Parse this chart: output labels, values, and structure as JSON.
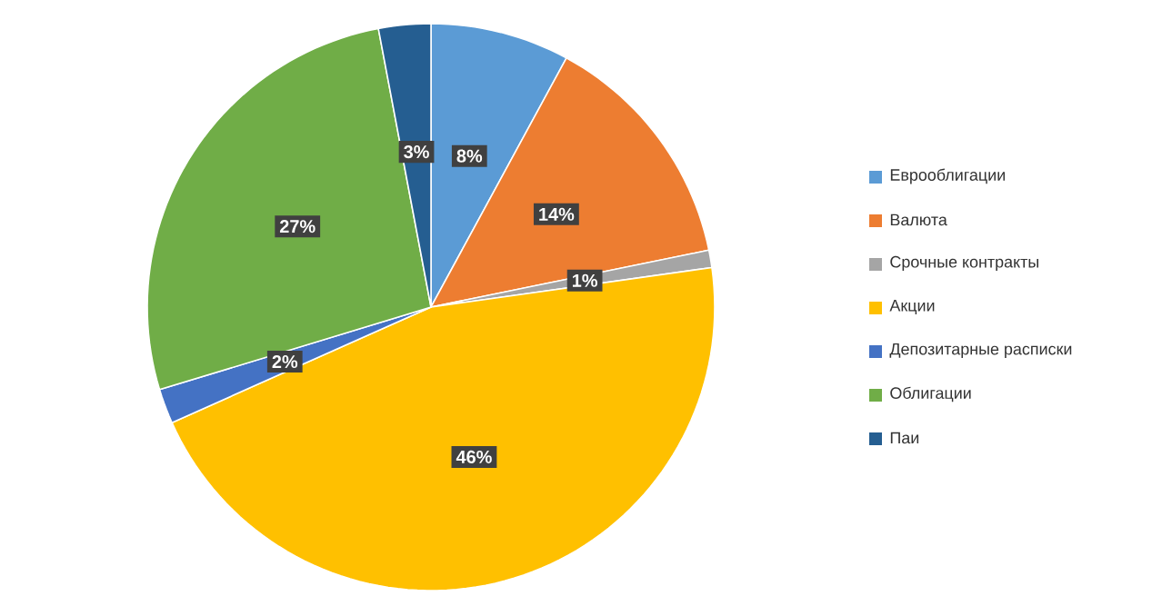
{
  "chart_data": {
    "type": "pie",
    "categories": [
      "Еврооблигации",
      "Валюта",
      "Срочные контракты",
      "Акции",
      "Депозитарные расписки",
      "Облигации",
      "Паи"
    ],
    "values": [
      8,
      14,
      1,
      46,
      2,
      27,
      3
    ],
    "value_labels": [
      "8%",
      "14%",
      "1%",
      "46%",
      "2%",
      "27%",
      "3%"
    ],
    "colors": [
      "#5b9bd5",
      "#ed7d31",
      "#a5a5a5",
      "#ffc000",
      "#4472c4",
      "#70ad47",
      "#255e91"
    ],
    "legend": "right"
  }
}
